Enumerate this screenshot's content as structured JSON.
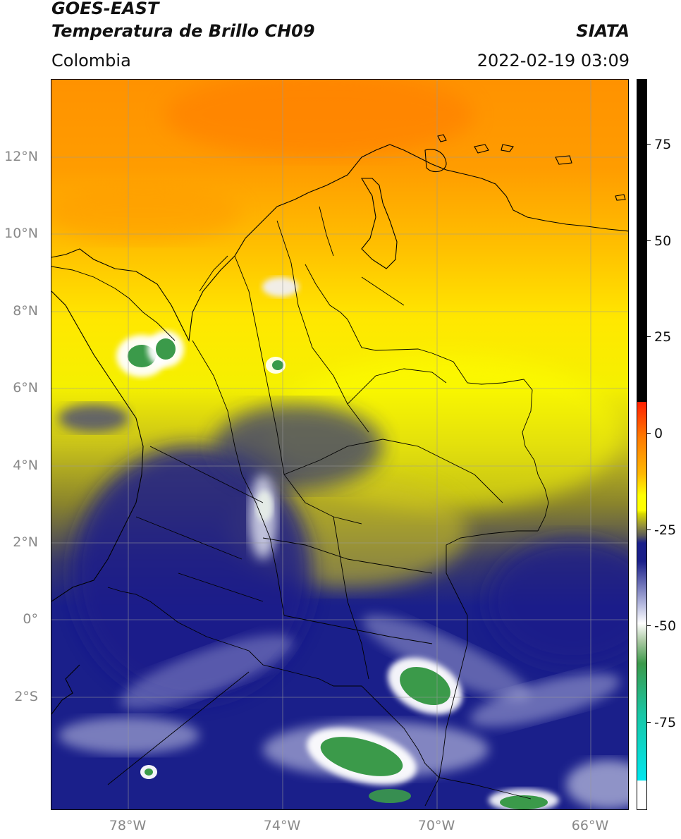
{
  "header": {
    "satellite": "GOES-EAST",
    "product": "Temperatura de Brillo CH09",
    "agency": "SIATA",
    "region": "Colombia",
    "datetime": "2022-02-19 03:09"
  },
  "map": {
    "lat_labels": [
      "12°N",
      "10°N",
      "8°N",
      "6°N",
      "4°N",
      "2°N",
      "0°",
      "2°S"
    ],
    "lon_labels": [
      "78°W",
      "74°W",
      "70°W",
      "66°W"
    ],
    "lon_range": [
      -80.0,
      -65.0
    ],
    "lat_range": [
      -5.2,
      14.0
    ],
    "grid": true
  },
  "colorbar": {
    "ticks": [
      "75",
      "50",
      "25",
      "0",
      "-25",
      "-50",
      "-75"
    ],
    "tick_values": [
      75,
      50,
      25,
      0,
      -25,
      -50,
      -75
    ],
    "range": [
      -100,
      90
    ],
    "colors": {
      "warm_top": "#000000",
      "red": "#ff1f00",
      "orange": "#ff9a00",
      "yellow": "#ffff00",
      "olive": "#6b6b2a",
      "navy": "#1a1f8a",
      "white": "#ffffff",
      "green": "#3b9a4a",
      "teal": "#18c7a5",
      "cyan": "#00e6ee"
    }
  }
}
